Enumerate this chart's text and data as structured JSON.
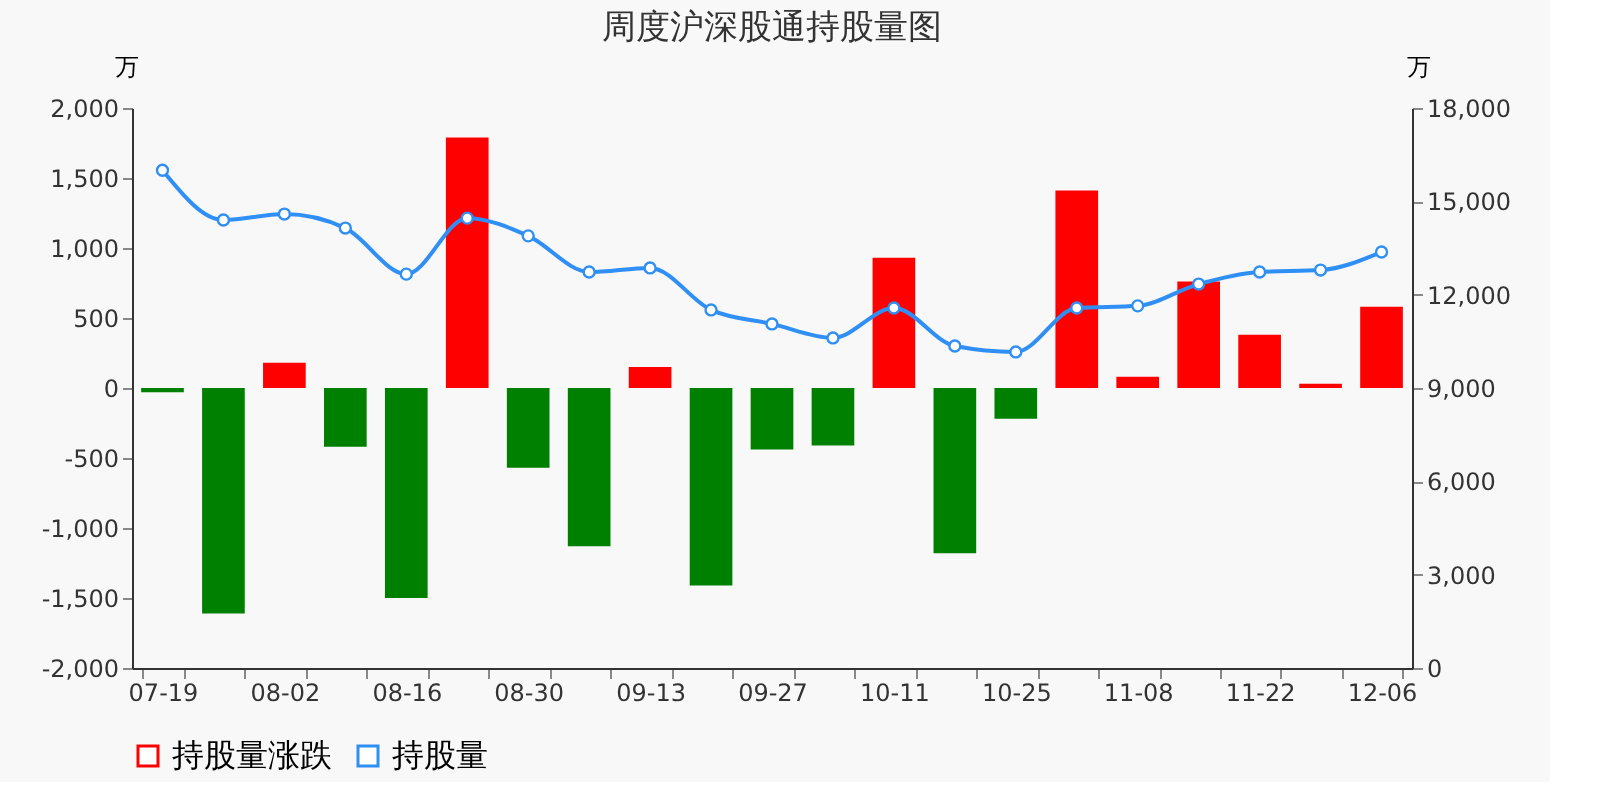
{
  "chart_data": {
    "type": "bar",
    "title": "周度沪深股通持股量图",
    "ylabel": "万",
    "y2label": "万",
    "categories": [
      "07-19",
      null,
      "08-02",
      null,
      "08-16",
      null,
      "08-30",
      null,
      "09-13",
      null,
      "09-27",
      null,
      "10-11",
      null,
      "10-25",
      null,
      "11-08",
      null,
      "11-22",
      null,
      "12-06"
    ],
    "series": [
      {
        "name": "持股量涨跌",
        "color": "#ff0000",
        "colors": [
          "#008000",
          "#008000",
          "#ff0000",
          "#008000",
          "#008000",
          "#ff0000",
          "#008000",
          "#008000",
          "#ff0000",
          "#008000",
          "#008000",
          "#008000",
          "#ff0000",
          "#008000",
          "#008000",
          "#ff0000",
          "#ff0000",
          "#ff0000",
          "#ff0000",
          "#ff0000",
          "#ff0000"
        ],
        "values": [
          -30,
          -1610,
          180,
          -420,
          -1500,
          1790,
          -570,
          -1130,
          150,
          -1410,
          -440,
          -410,
          930,
          -1180,
          -220,
          1410,
          80,
          760,
          380,
          30,
          580
        ]
      },
      {
        "name": "持股量",
        "type": "line",
        "axis": "y2",
        "color": "#2f8ff5",
        "marker": "circle",
        "values": [
          16000,
          14400,
          14590,
          14140,
          12660,
          14460,
          13890,
          12730,
          12860,
          11510,
          11060,
          10610,
          11570,
          10350,
          10160,
          11570,
          11640,
          12340,
          12730,
          12790,
          13370
        ]
      }
    ],
    "ylim": [
      -2000,
      2000
    ],
    "yticks": [
      {
        "value": -2000,
        "label": "-2,000"
      },
      {
        "value": -1500,
        "label": "-1,500"
      },
      {
        "value": -1000,
        "label": "-1,000"
      },
      -500,
      0,
      500,
      {
        "value": 1000,
        "label": "1,000"
      },
      {
        "value": 1500,
        "label": "1,500"
      },
      {
        "value": 2000,
        "label": "2,000"
      }
    ],
    "y2lim": [
      0,
      18000
    ],
    "y2ticks": [
      0,
      {
        "value": 3000,
        "label": "3,000"
      },
      {
        "value": 6000,
        "label": "6,000"
      },
      {
        "value": 9000,
        "label": "9,000"
      },
      {
        "value": 12000,
        "label": "12,000"
      },
      {
        "value": 15000,
        "label": "15,000"
      },
      {
        "value": 18000,
        "label": "18,000"
      }
    ],
    "grid": false,
    "legend": "bottom"
  }
}
